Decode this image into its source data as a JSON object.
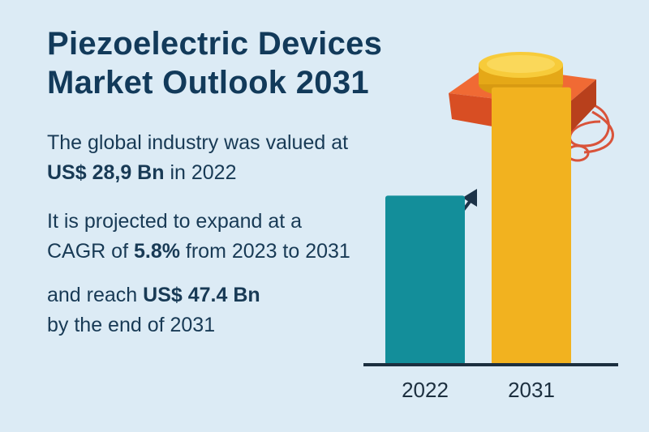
{
  "header": {
    "title_line1": "Piezoelectric Devices",
    "title_line2": "Market Outlook 2031"
  },
  "facts": {
    "p1_line1": "The global industry was valued at",
    "p1_value": "US$ 28,9 Bn",
    "p1_suffix": " in 2022",
    "p2_line1": "It is projected to expand at a",
    "p2_prefix": "CAGR of ",
    "p2_value": "5.8%",
    "p2_suffix": " from 2023 to 2031",
    "p3_prefix": "and reach ",
    "p3_value": "US$ 47.4 Bn",
    "p3_line2": "by the end of 2031"
  },
  "chart_data": {
    "type": "bar",
    "categories": [
      "2022",
      "2031"
    ],
    "values": [
      28.9,
      47.4
    ],
    "ylim": [
      0,
      50
    ],
    "colors": [
      "#138e9a",
      "#f2b21f"
    ],
    "grid": false
  },
  "colors": {
    "background": "#dcebf5",
    "title": "#123a5a",
    "device_base": "#e8592a",
    "device_disc": "#f7cb3a",
    "wire": "#d9533a",
    "arrow": "#1c3348"
  },
  "icons": {
    "device": "piezo-device-icon",
    "growth": "growth-arrow-icon"
  }
}
